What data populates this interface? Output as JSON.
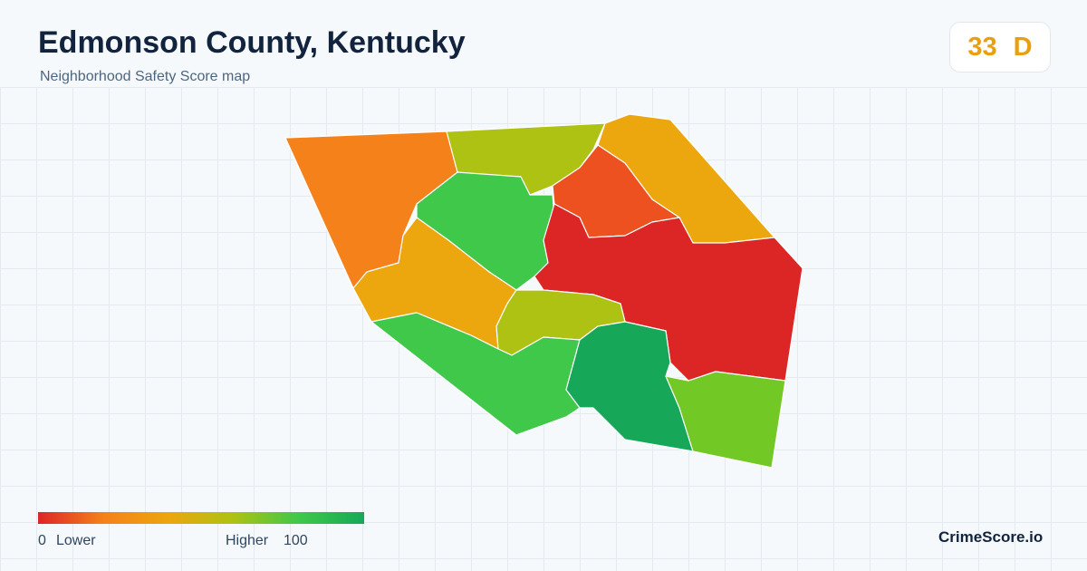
{
  "header": {
    "title": "Edmonson County, Kentucky",
    "subtitle": "Neighborhood Safety Score map",
    "score": "33",
    "grade": "D"
  },
  "legend": {
    "min": "0",
    "min_label": "Lower",
    "max_label": "Higher",
    "max": "100"
  },
  "brand": "CrimeScore.io"
}
